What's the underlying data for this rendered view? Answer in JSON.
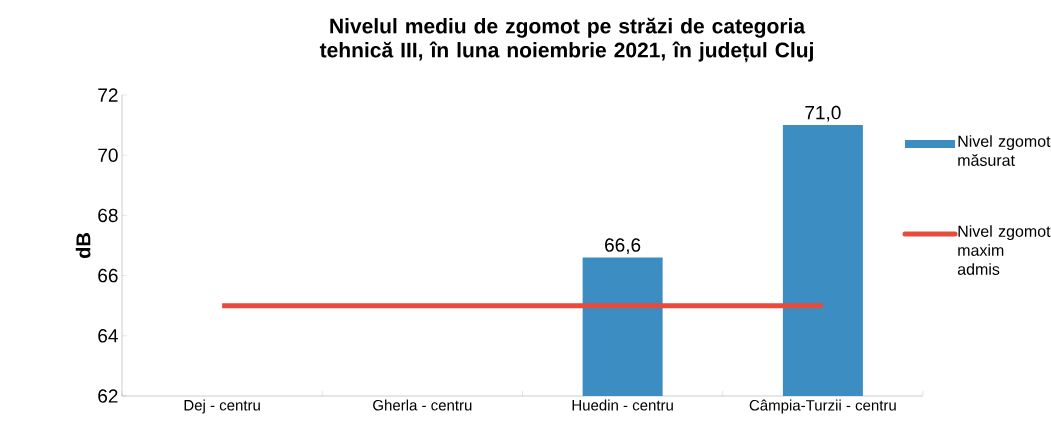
{
  "chart_data": {
    "type": "bar",
    "title": "Nivelul mediu de zgomot pe străzi de categoria tehnică III, în luna noiembrie 2021, în județul Cluj",
    "ylabel": "dB",
    "categories": [
      "Dej - centru",
      "Gherla - centru",
      "Huedin - centru",
      "Câmpia-Turzii - centru"
    ],
    "series": [
      {
        "name": "Nivel zgomot măsurat",
        "color": "#3b8dc2",
        "values": [
          null,
          null,
          66.6,
          71.0
        ],
        "value_labels": [
          null,
          null,
          "66,6",
          "71,0"
        ]
      },
      {
        "name": "Nivel zgomot maxim admis",
        "type": "line",
        "color": "#e84a3c",
        "values": [
          65,
          65,
          65,
          65
        ]
      }
    ],
    "ylim": [
      62,
      72
    ],
    "yticks": [
      62,
      64,
      66,
      68,
      70,
      72
    ],
    "legend": "right",
    "grid": false
  }
}
